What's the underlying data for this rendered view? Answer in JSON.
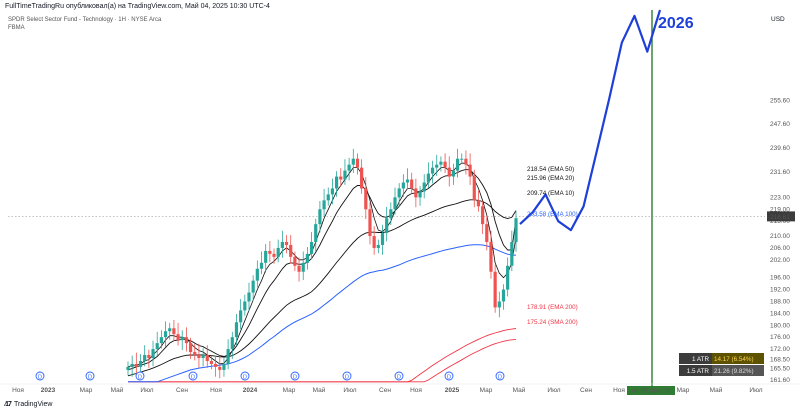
{
  "header": {
    "publisher": "FullTimeTradingRu опубликовал(а) на TradingView.com, Май 04, 2025 10:30 UTC-4",
    "symbol": "SPDR Select Sector Fund - Technology · 1H · NYSE Arca",
    "subtitle": "FBMA",
    "currency": "USD"
  },
  "footer": {
    "brand": "TradingView",
    "logo_icon": "tradingview-logo-icon"
  },
  "annotation_year": "2026",
  "colors": {
    "up": "#26a69a",
    "down": "#ef5350",
    "ema100": "#2962ff",
    "ema200": "#f23645",
    "sma200": "#f23645",
    "projection": "#1e3fd8",
    "vline": "#2e7d32",
    "ema_black": "#111111"
  },
  "chart_data": {
    "type": "candlestick",
    "ylim": [
      161.6,
      286
    ],
    "price_axis_ticks": [
      161.6,
      165.5,
      168.5,
      172.0,
      176.0,
      180.0,
      184.0,
      188.0,
      192.0,
      196.0,
      202.0,
      206.0,
      210.0,
      215.0,
      219.0,
      223.0,
      231.6,
      239.6,
      247.6,
      255.6
    ],
    "x_axis_labels": [
      "Ноя",
      "2023",
      "Мар",
      "Май",
      "Июл",
      "Сен",
      "Ноя",
      "2024",
      "Мар",
      "Май",
      "Июл",
      "Сен",
      "Ноя",
      "2025",
      "Мар",
      "Май",
      "Июл",
      "Сен",
      "Ноя",
      "Янв",
      "Мар",
      "Май",
      "Июл"
    ],
    "highlight_date": "пн 29 Дек '25",
    "dividend_marker": "D",
    "current_price": "216.61",
    "ma_labels": [
      {
        "value": "218.54",
        "name": "EMA 50",
        "color": "#111111"
      },
      {
        "value": "215.96",
        "name": "EMA 20",
        "color": "#111111"
      },
      {
        "value": "209.74",
        "name": "EMA 10",
        "color": "#111111"
      },
      {
        "value": "203.58",
        "name": "EMA 100",
        "color": "#2962ff"
      },
      {
        "value": "178.91",
        "name": "EMA 200",
        "color": "#f23645"
      },
      {
        "value": "175.24",
        "name": "SMA 200",
        "color": "#f23645"
      }
    ],
    "atr": [
      {
        "label": "1 ATR",
        "value": "14.17 (6.54%)"
      },
      {
        "label": "1.5 ATR",
        "value": "21.26 (9.82%)"
      }
    ],
    "candles_close": [
      166,
      167,
      166,
      168,
      170,
      169,
      172,
      174,
      176,
      178,
      179,
      177,
      175,
      176,
      174,
      171,
      170,
      169,
      170,
      168,
      167,
      166,
      165,
      167,
      172,
      176,
      181,
      185,
      188,
      191,
      195,
      199,
      201,
      205,
      204,
      203,
      206,
      208,
      207,
      203,
      200,
      198,
      201,
      204,
      208,
      214,
      219,
      222,
      224,
      226,
      230,
      229,
      232,
      234,
      236,
      233,
      226,
      219,
      210,
      206,
      207,
      211,
      216,
      219,
      223,
      226,
      228,
      229,
      226,
      223,
      225,
      228,
      231,
      233,
      234,
      235,
      233,
      230,
      232,
      236,
      236,
      234,
      230,
      222,
      220,
      214,
      208,
      198,
      186,
      188,
      192,
      200,
      208,
      216
    ],
    "ema10": [
      166,
      166.5,
      166.6,
      167,
      168,
      168.5,
      170,
      171.5,
      173,
      175,
      176.5,
      176.5,
      176,
      176,
      175.5,
      174,
      172.5,
      171.5,
      171,
      170,
      169,
      168,
      167,
      167.2,
      169,
      171.5,
      174.5,
      178,
      181.5,
      185,
      188.5,
      192,
      195,
      198.5,
      200.5,
      201.5,
      203,
      205,
      206,
      205,
      203.5,
      202,
      202,
      202.8,
      204.5,
      208,
      212,
      216,
      219,
      222,
      225,
      227,
      229,
      231,
      233,
      233,
      231,
      227,
      222,
      216,
      212,
      211.5,
      212.8,
      215,
      218.5,
      221.5,
      224,
      226,
      226,
      225,
      225,
      226,
      228,
      230,
      231.5,
      233,
      233,
      232,
      232,
      233.5,
      234.5,
      234.5,
      233,
      229,
      226,
      222,
      217,
      210,
      201,
      197.5,
      196,
      197.5,
      201,
      209.7
    ],
    "ema20": [
      165,
      165.5,
      166,
      166.5,
      167,
      167.5,
      168.5,
      169.5,
      171,
      172.5,
      174,
      174.8,
      175,
      175.3,
      175.3,
      174.8,
      174,
      173.2,
      172.8,
      172,
      171.3,
      170.5,
      169.8,
      169.5,
      170,
      171.2,
      173,
      175.2,
      177.5,
      180,
      182.8,
      185.6,
      188.3,
      191,
      193.2,
      195,
      197,
      199,
      200.5,
      201,
      200.8,
      200.5,
      200.6,
      201.2,
      202.5,
      204.5,
      207,
      209.8,
      212.5,
      215,
      217.8,
      220,
      222,
      224,
      226,
      227,
      227,
      225.5,
      223,
      220,
      217.5,
      216.5,
      216.3,
      217,
      218.5,
      220,
      221.8,
      223.5,
      224.3,
      224.5,
      224.7,
      225.2,
      226,
      227.2,
      228.3,
      229.5,
      230.2,
      230.4,
      230.7,
      231.4,
      232,
      232.4,
      232.2,
      230.8,
      229.3,
      227.2,
      224.6,
      220.6,
      215,
      210.5,
      207,
      205.3,
      205.3,
      215.96
    ],
    "ema50": [
      163,
      163.4,
      163.8,
      164.2,
      164.7,
      165.1,
      165.6,
      166.2,
      166.8,
      167.5,
      168.2,
      168.8,
      169.2,
      169.6,
      169.9,
      170,
      170,
      170,
      170,
      169.9,
      169.8,
      169.6,
      169.4,
      169.3,
      169.4,
      169.8,
      170.5,
      171.4,
      172.5,
      173.7,
      175.1,
      176.6,
      178.1,
      179.7,
      181.2,
      182.6,
      184,
      185.4,
      186.7,
      187.7,
      188.5,
      189.1,
      189.7,
      190.4,
      191.3,
      192.6,
      194.1,
      195.8,
      197.5,
      199.3,
      201.1,
      202.8,
      204.5,
      206.2,
      207.8,
      209.2,
      210.3,
      211,
      211.3,
      211.3,
      211.2,
      211.2,
      211.4,
      211.8,
      212.4,
      213.1,
      213.9,
      214.7,
      215.4,
      216,
      216.5,
      217,
      217.6,
      218.2,
      218.8,
      219.4,
      219.9,
      220.3,
      220.6,
      221,
      221.5,
      221.9,
      222.2,
      222.2,
      222,
      221.6,
      220.9,
      219.8,
      218.3,
      217.2,
      216.3,
      215.9,
      216.3,
      218.54
    ],
    "ema100": [
      161,
      161,
      161,
      161,
      161,
      161,
      161,
      161,
      161.5,
      162,
      162.5,
      163,
      163.5,
      164,
      164.5,
      165,
      165.3,
      165.6,
      165.8,
      166,
      166.2,
      166.4,
      166.6,
      166.8,
      167,
      167.4,
      167.9,
      168.5,
      169.2,
      170,
      171,
      172,
      173,
      174.1,
      175.2,
      176.2,
      177.3,
      178.4,
      179.4,
      180.3,
      181.1,
      181.8,
      182.4,
      183.1,
      183.8,
      184.7,
      185.7,
      186.8,
      187.9,
      189,
      190.2,
      191.3,
      192.4,
      193.5,
      194.6,
      195.6,
      196.5,
      197.2,
      197.7,
      198,
      198.3,
      198.5,
      198.9,
      199.3,
      199.8,
      200.3,
      200.9,
      201.5,
      202,
      202.5,
      202.9,
      203.3,
      203.7,
      204.1,
      204.5,
      204.9,
      205.3,
      205.6,
      205.9,
      206.2,
      206.5,
      206.8,
      207,
      207.1,
      207.1,
      207,
      206.7,
      206.3,
      205.6,
      205,
      204.4,
      203.9,
      203.6,
      203.58
    ],
    "ema200": [
      161,
      161,
      161,
      161,
      161,
      161,
      161,
      161,
      161,
      161,
      161,
      161,
      161,
      161,
      161,
      161,
      161,
      161,
      161,
      161,
      161,
      161,
      161,
      161,
      161,
      161,
      161,
      161,
      161,
      161,
      161,
      161,
      161,
      161,
      161,
      161,
      161,
      161,
      161,
      161,
      161,
      161,
      161,
      161,
      161,
      161,
      161,
      161,
      161,
      161,
      161,
      161,
      161,
      161,
      161,
      161,
      161,
      161,
      161,
      161,
      161,
      161,
      161,
      161,
      161,
      161,
      161,
      161,
      161.5,
      162.5,
      163.5,
      164.5,
      165.5,
      166.5,
      167.4,
      168.3,
      169.2,
      170,
      170.8,
      171.6,
      172.4,
      173.2,
      173.9,
      174.6,
      175.3,
      175.9,
      176.5,
      177,
      177.4,
      177.8,
      178.2,
      178.5,
      178.7,
      178.91
    ],
    "sma200": [
      161,
      161,
      161,
      161,
      161,
      161,
      161,
      161,
      161,
      161,
      161,
      161,
      161,
      161,
      161,
      161,
      161,
      161,
      161,
      161,
      161,
      161,
      161,
      161,
      161,
      161,
      161,
      161,
      161,
      161,
      161,
      161,
      161,
      161,
      161,
      161,
      161,
      161,
      161,
      161,
      161,
      161,
      161,
      161,
      161,
      161,
      161,
      161,
      161,
      161,
      161,
      161,
      161,
      161,
      161,
      161,
      161,
      161,
      161,
      161,
      161,
      161,
      161,
      161,
      161,
      161,
      161,
      161,
      161,
      161,
      161,
      161,
      161.6,
      162.5,
      163.4,
      164.3,
      165.2,
      166,
      166.8,
      167.6,
      168.4,
      169.2,
      170,
      170.7,
      171.4,
      172.1,
      172.7,
      173.3,
      173.8,
      174.2,
      174.6,
      174.9,
      175.1,
      175.24
    ],
    "projection": [
      [
        0,
        214
      ],
      [
        1,
        218
      ],
      [
        2,
        224
      ],
      [
        3,
        215
      ],
      [
        4,
        212
      ],
      [
        5,
        220
      ],
      [
        6,
        238
      ],
      [
        7,
        256
      ],
      [
        8,
        275
      ],
      [
        9,
        284
      ],
      [
        10,
        272
      ],
      [
        11,
        286
      ]
    ]
  }
}
